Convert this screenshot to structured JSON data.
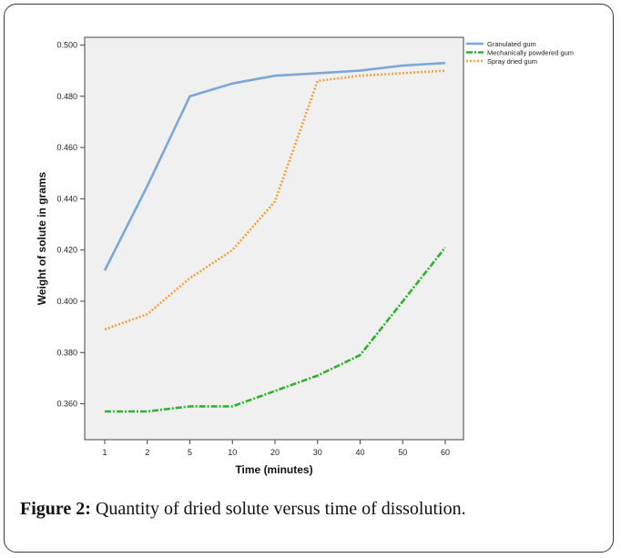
{
  "caption": {
    "label": "Figure 2:",
    "text": " Quantity of dried solute versus time of dissolution."
  },
  "chart_data": {
    "type": "line",
    "xlabel": "Time (minutes)",
    "ylabel": "Weight of solute in grams",
    "categories": [
      "1",
      "2",
      "5",
      "10",
      "20",
      "30",
      "40",
      "50",
      "60"
    ],
    "ylim": [
      0.346,
      0.503
    ],
    "yticks": [
      "0.360",
      "0.380",
      "0.400",
      "0.420",
      "0.440",
      "0.460",
      "0.480",
      "0.500"
    ],
    "grid": false,
    "legend_position": "top-right",
    "series": [
      {
        "name": "Granulated gum",
        "color": "#7ba7d6",
        "dash": "solid",
        "values": [
          0.412,
          0.445,
          0.48,
          0.485,
          0.488,
          0.489,
          0.49,
          0.492,
          0.493
        ]
      },
      {
        "name": "Mechanically powdered gum",
        "color": "#2fb32f",
        "dash": "dashdot",
        "values": [
          0.357,
          0.357,
          0.359,
          0.359,
          0.365,
          0.371,
          0.379,
          0.4,
          0.421
        ]
      },
      {
        "name": "Spray dried gum",
        "color": "#f5a23c",
        "dash": "dotted",
        "values": [
          0.389,
          0.395,
          0.409,
          0.42,
          0.439,
          0.486,
          0.488,
          0.489,
          0.49
        ]
      }
    ]
  }
}
